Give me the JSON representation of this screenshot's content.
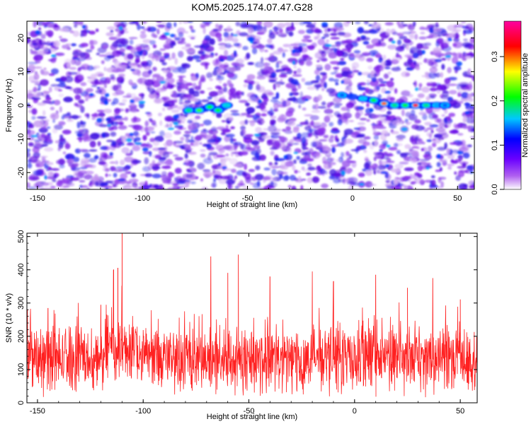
{
  "title": "KOM5.2025.174.07.47.G28",
  "chart_data": [
    {
      "type": "heatmap",
      "xlabel": "Height of straight line (km)",
      "ylabel": "Frequency (Hz)",
      "xlim": [
        -155,
        58
      ],
      "ylim": [
        -25,
        25
      ],
      "xticks": [
        -150,
        -100,
        -50,
        0,
        50
      ],
      "yticks": [
        -20,
        -10,
        0,
        10,
        20
      ],
      "colorbar": {
        "label": "Normalized spectral amplitude",
        "range": [
          0,
          0.38
        ],
        "ticks": [
          0.0,
          0.1,
          0.2,
          0.3
        ],
        "colors": [
          "#ffffff",
          "#a020f0",
          "#0000ff",
          "#00ffff",
          "#00ff00",
          "#ffff00",
          "#ff0000",
          "#ff00ff"
        ]
      },
      "features": [
        {
          "name": "signal-track-left",
          "x": [
            -78,
            -73,
            -68,
            -64,
            -60
          ],
          "y": [
            -1.5,
            -1.5,
            -0.5,
            -1.5,
            0
          ],
          "amplitude": [
            0.18,
            0.22,
            0.2,
            0.2,
            0.16
          ]
        },
        {
          "name": "signal-track-right",
          "x": [
            -5,
            5,
            10,
            15,
            20,
            25,
            30,
            35,
            40,
            44
          ],
          "y": [
            3,
            2,
            1.5,
            0.5,
            0,
            0,
            0,
            0,
            0,
            0
          ],
          "amplitude": [
            0.12,
            0.15,
            0.2,
            0.3,
            0.18,
            0.2,
            0.34,
            0.18,
            0.14,
            0.12
          ]
        }
      ]
    },
    {
      "type": "line",
      "xlabel": "Height of straight line (km)",
      "ylabel": "SNR (10 * v/v)",
      "xlim": [
        -155,
        58
      ],
      "ylim": [
        0,
        510
      ],
      "xticks": [
        -150,
        -100,
        -50,
        0,
        50
      ],
      "yticks": [
        0,
        100,
        200,
        300,
        400,
        500
      ],
      "series_color": "#ff2020",
      "baseline_level": 130,
      "spikes": [
        {
          "x": -110,
          "y": 510
        },
        {
          "x": -112,
          "y": 405
        },
        {
          "x": -114,
          "y": 400
        },
        {
          "x": -68,
          "y": 440
        },
        {
          "x": -55,
          "y": 445
        },
        {
          "x": -60,
          "y": 390
        },
        {
          "x": -40,
          "y": 380
        },
        {
          "x": -20,
          "y": 395
        },
        {
          "x": -10,
          "y": 365
        },
        {
          "x": 10,
          "y": 385
        },
        {
          "x": 37,
          "y": 375
        },
        {
          "x": 25,
          "y": 345
        },
        {
          "x": -145,
          "y": 285
        },
        {
          "x": -120,
          "y": 295
        },
        {
          "x": 50,
          "y": 310
        }
      ]
    }
  ]
}
